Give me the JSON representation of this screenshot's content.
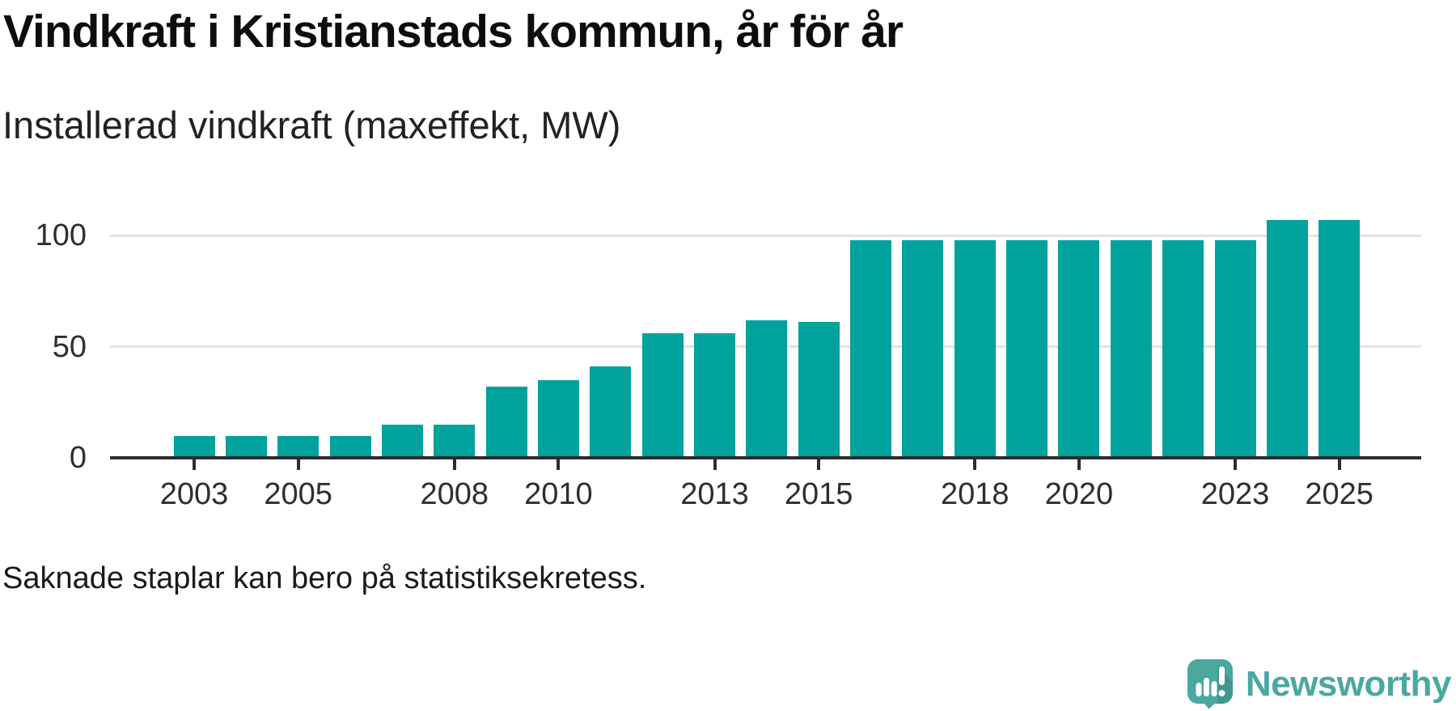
{
  "header": {
    "title": "Vindkraft i Kristianstads kommun, år för år",
    "subtitle": "Installerad vindkraft (maxeffekt, MW)"
  },
  "footer": {
    "note": "Saknade staplar kan bero på statistiksekretess.",
    "brand": "Newsworthy"
  },
  "colors": {
    "bar": "#00a29c",
    "brand": "#4aa8a1",
    "grid": "#e3e3e3",
    "axis": "#2d2d2d",
    "text": "#1a1a1a"
  },
  "chart_data": {
    "type": "bar",
    "title": "Vindkraft i Kristianstads kommun, år för år",
    "subtitle": "Installerad vindkraft (maxeffekt, MW)",
    "xlabel": "",
    "ylabel": "Installerad vindkraft (maxeffekt, MW)",
    "x": [
      2003,
      2004,
      2005,
      2006,
      2007,
      2008,
      2009,
      2010,
      2011,
      2012,
      2013,
      2014,
      2015,
      2016,
      2017,
      2018,
      2019,
      2020,
      2021,
      2022,
      2023,
      2024,
      2025
    ],
    "values": [
      10,
      10,
      10,
      10,
      15,
      15,
      32,
      35,
      41,
      56,
      56,
      62,
      61,
      98,
      98,
      98,
      98,
      98,
      98,
      98,
      98,
      107,
      107
    ],
    "series_name": "Installerad vindkraft (MW)",
    "x_tick_labels": [
      "2003",
      "2005",
      "2008",
      "2010",
      "2013",
      "2015",
      "2018",
      "2020",
      "2023",
      "2025"
    ],
    "y_ticks": [
      0,
      50,
      100
    ],
    "gridlines": [
      50,
      100
    ],
    "ylim": [
      0,
      115
    ],
    "x_range_shown": [
      2002,
      2026
    ],
    "missing_years": [
      2002
    ],
    "grid": "horizontal-only",
    "legend": "none",
    "annotation": "Saknade staplar kan bero på statistiksekretess."
  }
}
